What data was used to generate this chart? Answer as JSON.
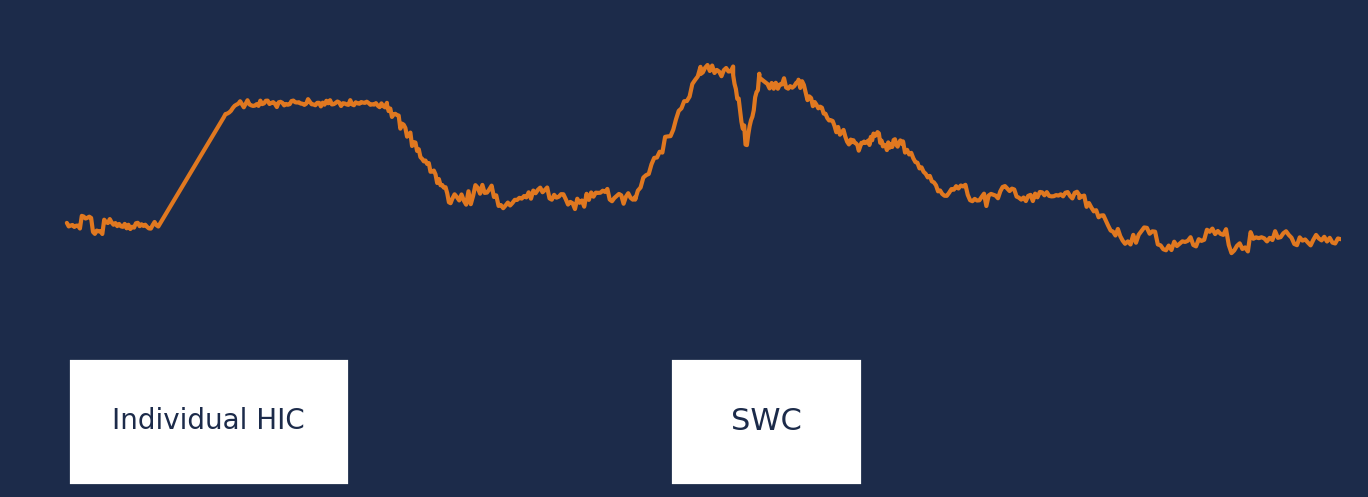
{
  "background_color": "#507a8a",
  "outer_background": "#1c2b4a",
  "line_color": "#e07820",
  "line_width": 3.0,
  "arrow_color": "#1c2b4a",
  "label_bg": "#ffffff",
  "label_text_color": "#1c2b4a",
  "label1": "Individual HIC",
  "label2": "SWC",
  "label1_fontsize": 20,
  "label2_fontsize": 22,
  "fig_width": 13.68,
  "fig_height": 4.97
}
